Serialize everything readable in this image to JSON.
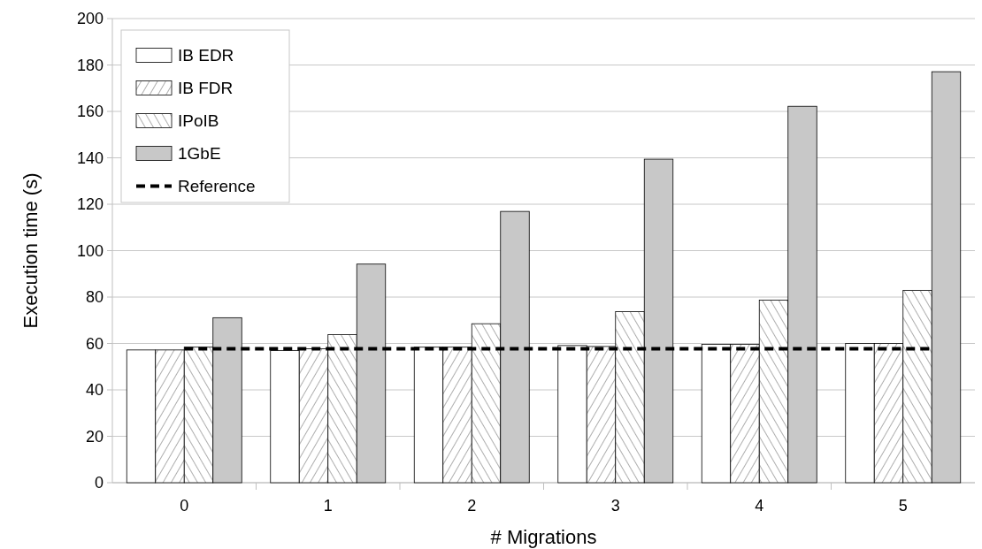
{
  "chart_data": {
    "type": "bar",
    "xlabel": "# Migrations",
    "ylabel": "Execution time (s)",
    "categories": [
      "0",
      "1",
      "2",
      "3",
      "4",
      "5"
    ],
    "series": [
      {
        "name": "IB EDR",
        "color": "#ffffff",
        "values": [
          57.2,
          57,
          58.4,
          59.1,
          59.6,
          60
        ]
      },
      {
        "name": "IB FDR",
        "color": "#ffffff",
        "values": [
          57.2,
          57.7,
          58.4,
          58.7,
          59.6,
          60
        ]
      },
      {
        "name": "IPoIB",
        "color": "#ffffff",
        "values": [
          58.4,
          63.8,
          68.5,
          73.7,
          78.7,
          82.9
        ]
      },
      {
        "name": "1GbE",
        "color": "#c8c8c8",
        "values": [
          71.1,
          94.2,
          116.9,
          139.4,
          162.2,
          177.1
        ]
      }
    ],
    "ref_lines": [
      {
        "axis": "y",
        "value": 57.7,
        "label": "Reference",
        "color": "#000000",
        "line_style": "dashed"
      }
    ],
    "ylim": [
      0,
      200
    ],
    "yticks": [
      0,
      20,
      40,
      60,
      80,
      100,
      120,
      140,
      160,
      180,
      200
    ],
    "grid": "y",
    "legend": "top left"
  }
}
